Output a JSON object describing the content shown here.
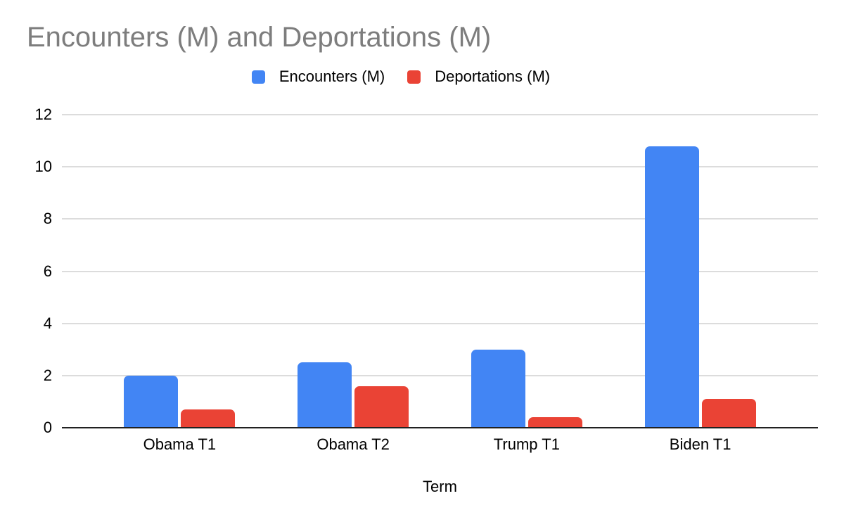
{
  "title": "Encounters (M) and Deportations (M)",
  "colors": {
    "encounters": "#4285f4",
    "deportations": "#ea4335",
    "title_text": "#7d7d7d",
    "gridline": "#dcdcdc",
    "axis_line": "#212121"
  },
  "legend": {
    "items": [
      {
        "label": "Encounters (M)",
        "color": "#4285f4"
      },
      {
        "label": "Deportations (M)",
        "color": "#ea4335"
      }
    ]
  },
  "chart_data": {
    "type": "bar",
    "title": "Encounters (M) and Deportations (M)",
    "categories": [
      "Obama T1",
      "Obama T2",
      "Trump T1",
      "Biden T1"
    ],
    "series": [
      {
        "name": "Encounters (M)",
        "color": "#4285f4",
        "values": [
          2.0,
          2.5,
          3.0,
          10.8
        ]
      },
      {
        "name": "Deportations (M)",
        "color": "#ea4335",
        "values": [
          0.7,
          1.6,
          0.4,
          1.1
        ]
      }
    ],
    "xlabel": "Term",
    "ylabel": "",
    "ylim": [
      0,
      12
    ],
    "y_ticks": [
      0,
      2,
      4,
      6,
      8,
      10,
      12
    ],
    "grid": true,
    "legend_position": "top"
  }
}
